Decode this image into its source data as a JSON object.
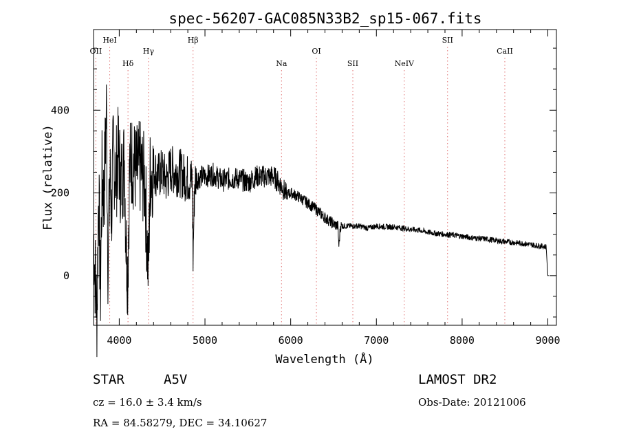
{
  "chart_data": {
    "type": "line",
    "title": "spec-56207-GAC085N33B2_sp15-067.fits",
    "xlabel": "Wavelength (Å)",
    "ylabel": "Flux (relative)",
    "xlim": [
      3700,
      9100
    ],
    "ylim": [
      -120,
      595
    ],
    "x_ticks": [
      4000,
      5000,
      6000,
      7000,
      8000,
      9000
    ],
    "y_ticks": [
      0,
      200,
      400
    ],
    "grid": false,
    "line_color": "#000000",
    "marker_color": "#e07070",
    "spectral_lines": [
      {
        "name": "OII",
        "x": 3727,
        "row": 3
      },
      {
        "name": "HeI",
        "x": 3889,
        "row": 1
      },
      {
        "name": "Hδ",
        "x": 4102,
        "row": 4
      },
      {
        "name": "Hγ",
        "x": 4341,
        "row": 3
      },
      {
        "name": "Hβ",
        "x": 4861,
        "row": 1
      },
      {
        "name": "Na",
        "x": 5893,
        "row": 4
      },
      {
        "name": "OI",
        "x": 6300,
        "row": 3
      },
      {
        "name": "SII",
        "x": 6725,
        "row": 4
      },
      {
        "name": "NeIV",
        "x": 7325,
        "row": 4
      },
      {
        "name": "SII",
        "x": 7830,
        "row": 1
      },
      {
        "name": "CaII",
        "x": 8498,
        "row": 3
      }
    ],
    "series": [
      {
        "x": [
          3700,
          3740,
          3760,
          3780,
          3800,
          3820,
          3850,
          3870,
          3890,
          3910,
          3930,
          3960,
          3990,
          4020,
          4060,
          4080,
          4100,
          4120,
          4150,
          4200,
          4250,
          4300,
          4340,
          4360,
          4400,
          4450,
          4500,
          4550,
          4600,
          4650,
          4700,
          4750,
          4800,
          4850,
          4861,
          4880,
          4950,
          5000,
          5100,
          5200,
          5300,
          5400,
          5500,
          5600,
          5700,
          5800,
          5900,
          5950,
          6000,
          6100,
          6200,
          6300,
          6400,
          6500,
          6550,
          6563,
          6580,
          6600,
          6700,
          6800,
          6900,
          7000,
          7100,
          7200,
          7300,
          7400,
          7500,
          7600,
          7700,
          7800,
          7900,
          8000,
          8100,
          8200,
          8300,
          8400,
          8500,
          8600,
          8700,
          8800,
          8900,
          8980,
          9000,
          9010
        ],
        "y": [
          100,
          -100,
          220,
          -50,
          250,
          180,
          400,
          0,
          250,
          150,
          300,
          240,
          300,
          220,
          280,
          80,
          0,
          260,
          280,
          250,
          260,
          220,
          0,
          240,
          260,
          240,
          250,
          230,
          260,
          250,
          250,
          240,
          235,
          230,
          40,
          230,
          240,
          240,
          245,
          230,
          235,
          235,
          225,
          240,
          240,
          240,
          215,
          195,
          200,
          190,
          175,
          160,
          140,
          125,
          120,
          70,
          120,
          120,
          120,
          120,
          115,
          120,
          118,
          118,
          115,
          112,
          110,
          105,
          102,
          100,
          98,
          95,
          92,
          90,
          88,
          85,
          82,
          80,
          78,
          75,
          72,
          70,
          0,
          0
        ]
      }
    ]
  },
  "info": {
    "object_class": "STAR",
    "subclass": "A5V",
    "survey": "LAMOST DR2",
    "cz": "cz = 16.0 ± 3.4 km/s",
    "obs_date": "Obs-Date: 20121006",
    "coords": "RA =  84.58279, DEC =  34.10627"
  }
}
